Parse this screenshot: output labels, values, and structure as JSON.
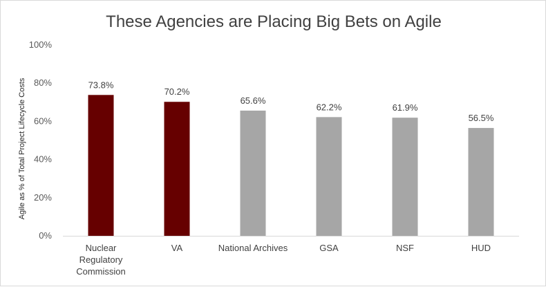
{
  "chart_data": {
    "type": "bar",
    "title": "These Agencies are Placing Big Bets on Agile",
    "ylabel": "Agile as % of Total Project Lifecycle Costs",
    "xlabel": "",
    "ylim": [
      0,
      100
    ],
    "y_ticks": [
      "0%",
      "20%",
      "40%",
      "60%",
      "80%",
      "100%"
    ],
    "y_tick_values": [
      0,
      20,
      40,
      60,
      80,
      100
    ],
    "categories": [
      [
        "Nuclear",
        "Regulatory",
        "Commission"
      ],
      [
        "VA"
      ],
      [
        "National Archives"
      ],
      [
        "GSA"
      ],
      [
        "NSF"
      ],
      [
        "HUD"
      ]
    ],
    "values": [
      73.8,
      70.2,
      65.6,
      62.2,
      61.9,
      56.5
    ],
    "data_labels": [
      "73.8%",
      "70.2%",
      "65.6%",
      "62.2%",
      "61.9%",
      "56.5%"
    ],
    "bar_colors": [
      "#660000",
      "#660000",
      "#a6a6a6",
      "#a6a6a6",
      "#a6a6a6",
      "#a6a6a6"
    ],
    "grid": false,
    "legend": "none"
  }
}
